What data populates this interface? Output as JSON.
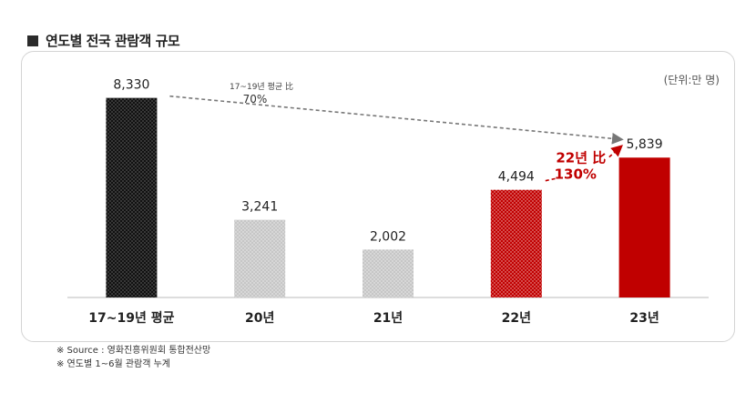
{
  "title": "연도별 전국 관람객 규모",
  "chart_data": {
    "type": "bar",
    "title": "연도별 전국 관람객 규모",
    "unit": "(단위:만 명)",
    "categories": [
      "17~19년 평균",
      "20년",
      "21년",
      "22년",
      "23년"
    ],
    "values": [
      8330,
      3241,
      2002,
      4494,
      5839
    ],
    "value_labels": [
      "8,330",
      "3,241",
      "2,002",
      "4,494",
      "5,839"
    ],
    "ylim": [
      0,
      9000
    ],
    "colors": [
      "#111111",
      "#c4c4c4",
      "#c4c4c4",
      "#c00000",
      "#c00000"
    ],
    "annotations": [
      {
        "label": "17~19년 평균 比",
        "value": "70%",
        "from": "17~19년 평균",
        "to": "23년"
      },
      {
        "label": "22년 比",
        "value": "130%",
        "from": "22년",
        "to": "23년",
        "color": "#c00000"
      }
    ]
  },
  "footnotes": [
    "※ Source : 영화진흥위원회 통합전산망",
    "※ 연도별 1~6월 관람객 누계"
  ]
}
